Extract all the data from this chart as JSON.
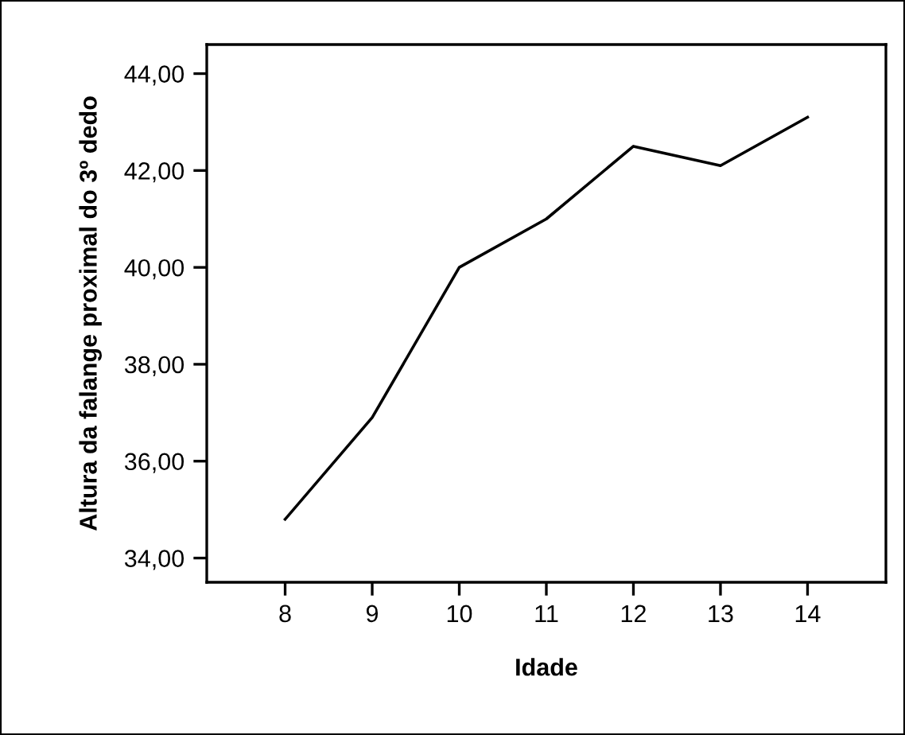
{
  "chart_data": {
    "type": "line",
    "xlabel": "Idade",
    "ylabel": "Altura da falange proximal do 3º dedo",
    "x": [
      8,
      9,
      10,
      11,
      12,
      13,
      14
    ],
    "series": [
      {
        "color": "#000000",
        "values": [
          34.8,
          36.9,
          40.0,
          41.0,
          42.5,
          42.1,
          43.1
        ]
      }
    ],
    "xlim": [
      7.1,
      14.9
    ],
    "ylim": [
      33.5,
      44.6
    ],
    "xticks": [
      8,
      9,
      10,
      11,
      12,
      13,
      14
    ],
    "yticks": [
      {
        "value": 34,
        "label": "34,00"
      },
      {
        "value": 36,
        "label": "36,00"
      },
      {
        "value": 38,
        "label": "38,00"
      },
      {
        "value": 40,
        "label": "40,00"
      },
      {
        "value": 42,
        "label": "42,00"
      },
      {
        "value": 44,
        "label": "44,00"
      }
    ],
    "grid": false,
    "legend": false,
    "marker": "none",
    "line_style": "solid"
  }
}
